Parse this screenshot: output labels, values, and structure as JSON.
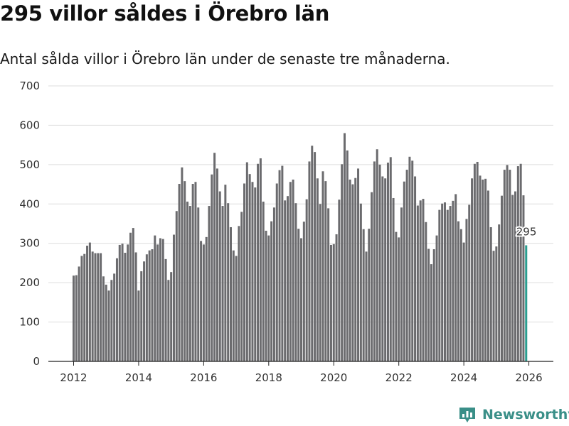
{
  "colors": {
    "bar": "#6b6b6e",
    "highlight": "#2a9d8f",
    "grid": "#dddddd",
    "brand": "#3a8f88"
  },
  "brand": {
    "name": "Newsworthy",
    "icon": "newsworthy-logo-icon"
  },
  "chart_data": {
    "type": "bar",
    "title": "295 villor såldes i Örebro län",
    "subtitle": "Antal sålda villor i Örebro län under de senaste tre månaderna.",
    "xlabel": "",
    "ylabel": "",
    "ylim": [
      0,
      700
    ],
    "yticks": [
      0,
      100,
      200,
      300,
      400,
      500,
      600,
      700
    ],
    "xtick_labels": [
      "2012",
      "2014",
      "2016",
      "2018",
      "2020",
      "2022",
      "2024",
      "2026"
    ],
    "start": "2012-01",
    "frequency": "monthly",
    "highlight_label": "295",
    "values": [
      218,
      219,
      241,
      268,
      273,
      294,
      302,
      279,
      275,
      275,
      275,
      216,
      195,
      180,
      207,
      223,
      262,
      296,
      299,
      276,
      297,
      327,
      339,
      277,
      180,
      229,
      254,
      272,
      282,
      285,
      320,
      297,
      313,
      311,
      260,
      207,
      227,
      322,
      382,
      451,
      493,
      458,
      406,
      395,
      451,
      456,
      391,
      306,
      297,
      316,
      395,
      475,
      530,
      490,
      432,
      395,
      449,
      402,
      341,
      282,
      268,
      344,
      380,
      452,
      506,
      476,
      456,
      442,
      502,
      516,
      406,
      332,
      320,
      356,
      391,
      452,
      486,
      497,
      409,
      420,
      456,
      462,
      402,
      337,
      313,
      355,
      412,
      508,
      548,
      532,
      465,
      400,
      483,
      458,
      389,
      296,
      298,
      323,
      411,
      501,
      580,
      536,
      462,
      450,
      466,
      490,
      401,
      336,
      279,
      337,
      430,
      508,
      539,
      500,
      470,
      465,
      505,
      519,
      415,
      329,
      315,
      391,
      457,
      487,
      520,
      510,
      470,
      396,
      409,
      413,
      354,
      286,
      247,
      285,
      320,
      385,
      401,
      404,
      385,
      395,
      408,
      425,
      356,
      336,
      302,
      362,
      398,
      465,
      502,
      507,
      472,
      462,
      464,
      434,
      341,
      281,
      292,
      348,
      421,
      487,
      499,
      487,
      423,
      432,
      496,
      502,
      422,
      295
    ]
  }
}
